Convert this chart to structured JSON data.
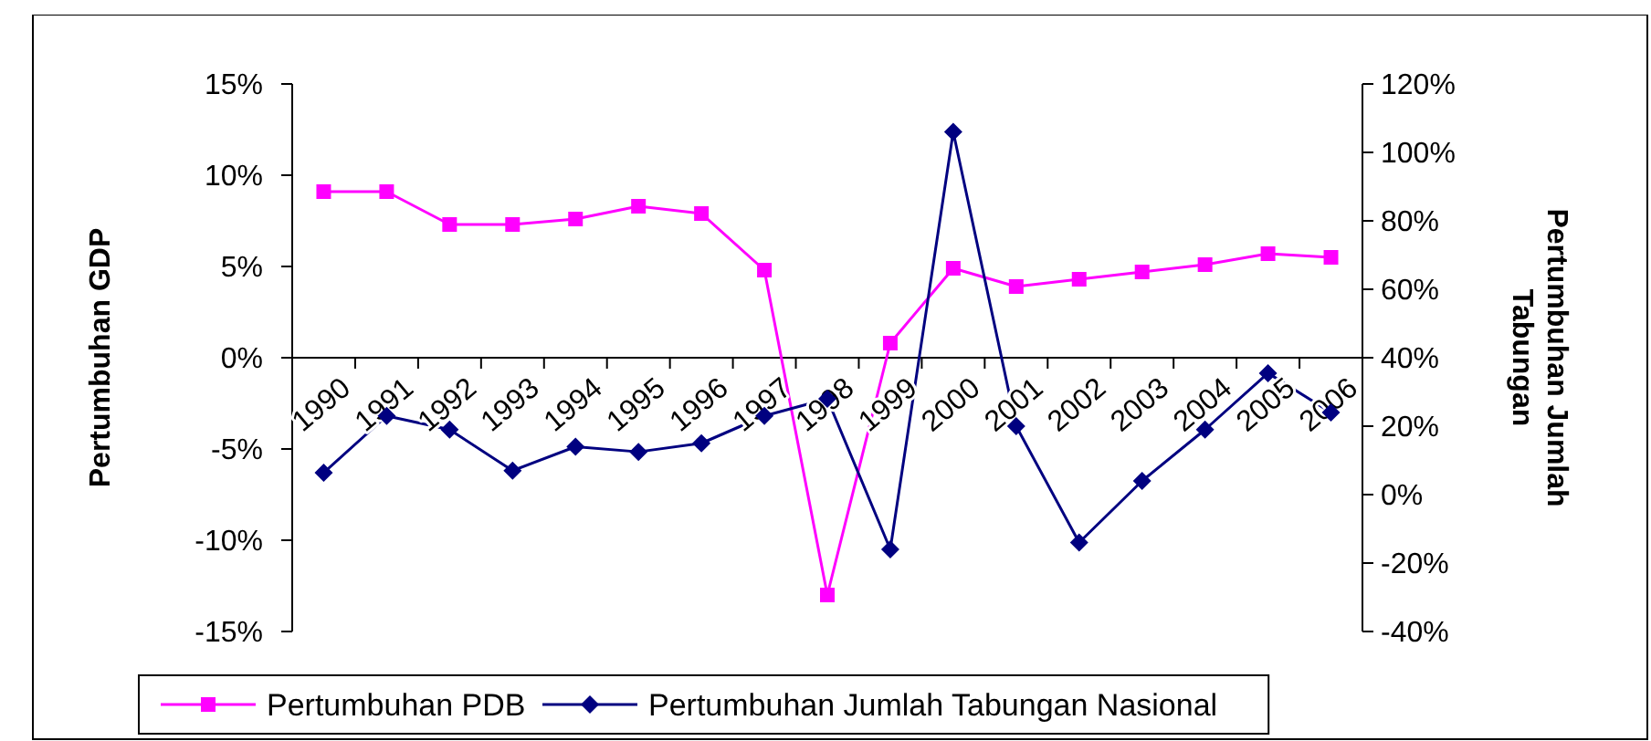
{
  "chart_data": {
    "type": "line",
    "ylabel": "Pertumbuhan GDP",
    "y2label": "Pertumbuhan Jumlah Tabungan",
    "categories": [
      "1990",
      "1991",
      "1992",
      "1993",
      "1994",
      "1995",
      "1996",
      "1997",
      "1998",
      "1999",
      "2000",
      "2001",
      "2002",
      "2003",
      "2004",
      "2005",
      "2006"
    ],
    "series": [
      {
        "name": "Pertumbuhan PDB",
        "color": "#ff00ff",
        "marker": "square",
        "values": [
          9.1,
          9.1,
          7.3,
          7.3,
          7.6,
          8.3,
          7.9,
          4.8,
          -13,
          0.8,
          4.9,
          3.9,
          4.3,
          4.7,
          5.1,
          5.7,
          5.5
        ]
      },
      {
        "name": "Pertumbuhan Jumlah Tabungan Nasional",
        "color": "#000080",
        "marker": "diamond",
        "axis": "y2",
        "values": [
          6.4,
          23,
          19,
          7,
          14,
          12.5,
          15,
          23,
          28,
          -16,
          106,
          20,
          -14,
          4,
          19,
          35.5,
          24
        ]
      }
    ],
    "ylim": [
      -15,
      15
    ],
    "yticks": [
      {
        "value": -15,
        "label": "-15%"
      },
      {
        "value": -10,
        "label": "-10%"
      },
      {
        "value": -5,
        "label": "-5%"
      },
      {
        "value": 0,
        "label": "0%"
      },
      {
        "value": 5,
        "label": "5%"
      },
      {
        "value": 10,
        "label": "10%"
      },
      {
        "value": 15,
        "label": "15%"
      }
    ],
    "y2lim": [
      -40,
      120
    ],
    "y2ticks": [
      {
        "value": -40,
        "label": "-40%"
      },
      {
        "value": -20,
        "label": "-20%"
      },
      {
        "value": 0,
        "label": "0%"
      },
      {
        "value": 20,
        "label": "20%"
      },
      {
        "value": 40,
        "label": "40%"
      },
      {
        "value": 60,
        "label": "60%"
      },
      {
        "value": 80,
        "label": "80%"
      },
      {
        "value": 100,
        "label": "100%"
      },
      {
        "value": 120,
        "label": "120%"
      }
    ],
    "legend": "bottom",
    "grid": false
  }
}
